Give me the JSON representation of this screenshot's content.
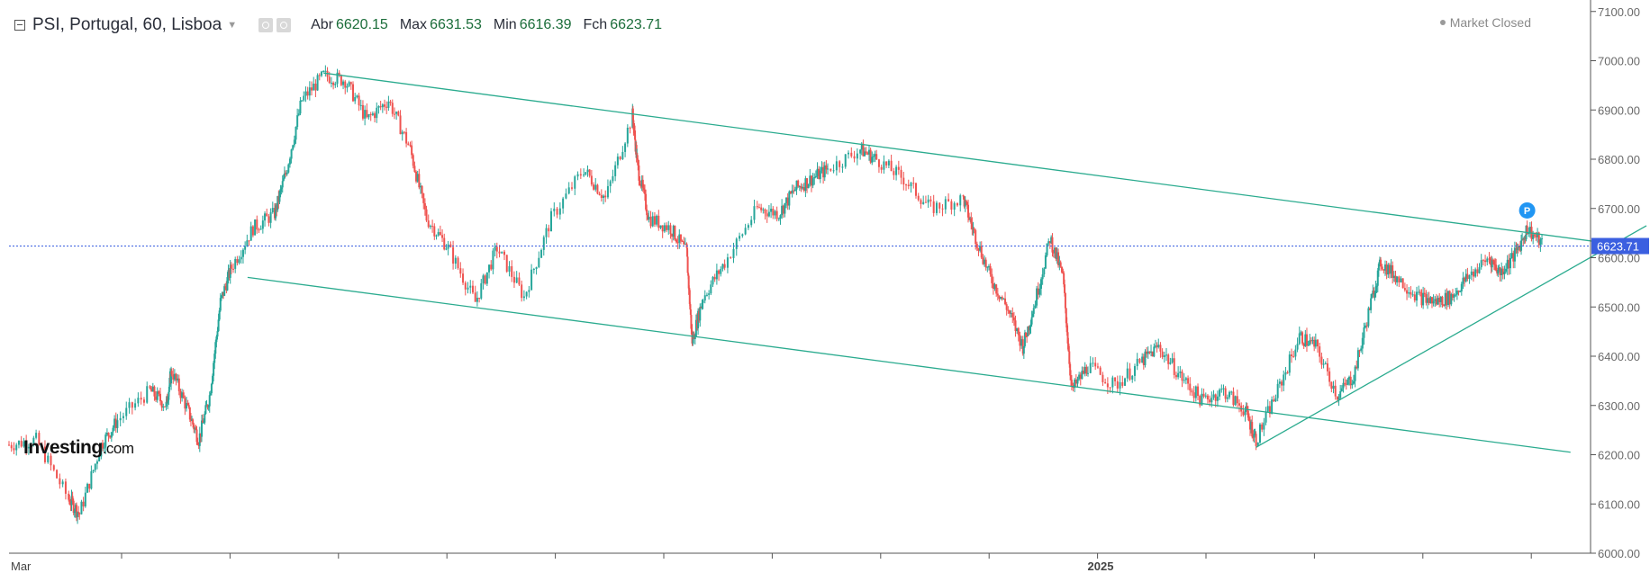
{
  "header": {
    "symbol": "PSI, Portugal, 60, Lisboa",
    "ohlc": [
      {
        "key": "Abr",
        "value": "6620.15"
      },
      {
        "key": "Max",
        "value": "6631.53"
      },
      {
        "key": "Min",
        "value": "6616.39"
      },
      {
        "key": "Fch",
        "value": "6623.71"
      }
    ],
    "status": "Market Closed"
  },
  "watermark": {
    "brand": "Investing",
    "domain": ".com"
  },
  "marker_label": "P",
  "colors": {
    "up": "#26a69a",
    "down": "#ef5350",
    "trendline": "#2bab8f",
    "current_line": "#3b5fe0",
    "price_tag": "#3b5fe0",
    "marker": "#2196f3"
  },
  "chart_data": {
    "type": "candlestick",
    "interval": "60",
    "ylim": [
      6000,
      7100
    ],
    "yticks": [
      6000,
      6100,
      6200,
      6300,
      6400,
      6500,
      6600,
      6700,
      6800,
      6900,
      7000,
      7100
    ],
    "ytick_labels": [
      "6000.00",
      "6100.00",
      "6200.00",
      "6300.00",
      "6400.00",
      "6500.00",
      "6600.00",
      "6700.00",
      "6800.00",
      "6900.00",
      "7000.00",
      "7100.00"
    ],
    "x_range": [
      0,
      15
    ],
    "x_labels": [
      {
        "x": 0,
        "text": "Mar"
      },
      {
        "x": 10,
        "text": "2025"
      }
    ],
    "current_price": 6623.71,
    "current_price_label": "6623.71",
    "price_path": [
      [
        0,
        6220
      ],
      [
        0.25,
        6230
      ],
      [
        0.55,
        6110
      ],
      [
        0.65,
        6080
      ],
      [
        0.85,
        6220
      ],
      [
        1.0,
        6270
      ],
      [
        1.3,
        6330
      ],
      [
        1.45,
        6300
      ],
      [
        1.5,
        6370
      ],
      [
        1.65,
        6290
      ],
      [
        1.75,
        6230
      ],
      [
        1.85,
        6320
      ],
      [
        1.95,
        6510
      ],
      [
        2.05,
        6580
      ],
      [
        2.25,
        6660
      ],
      [
        2.45,
        6690
      ],
      [
        2.55,
        6770
      ],
      [
        2.7,
        6920
      ],
      [
        2.9,
        6970
      ],
      [
        3.1,
        6960
      ],
      [
        3.3,
        6880
      ],
      [
        3.5,
        6920
      ],
      [
        3.7,
        6820
      ],
      [
        3.85,
        6680
      ],
      [
        4.05,
        6620
      ],
      [
        4.3,
        6510
      ],
      [
        4.5,
        6620
      ],
      [
        4.75,
        6520
      ],
      [
        5.0,
        6680
      ],
      [
        5.3,
        6780
      ],
      [
        5.5,
        6720
      ],
      [
        5.75,
        6890
      ],
      [
        5.8,
        6780
      ],
      [
        5.9,
        6680
      ],
      [
        6.1,
        6660
      ],
      [
        6.25,
        6610
      ],
      [
        6.3,
        6430
      ],
      [
        6.4,
        6520
      ],
      [
        6.6,
        6590
      ],
      [
        6.9,
        6700
      ],
      [
        7.1,
        6690
      ],
      [
        7.25,
        6740
      ],
      [
        7.4,
        6760
      ],
      [
        7.55,
        6780
      ],
      [
        7.85,
        6820
      ],
      [
        8.0,
        6800
      ],
      [
        8.25,
        6760
      ],
      [
        8.5,
        6700
      ],
      [
        8.8,
        6720
      ],
      [
        8.9,
        6650
      ],
      [
        9.05,
        6560
      ],
      [
        9.2,
        6500
      ],
      [
        9.35,
        6420
      ],
      [
        9.45,
        6500
      ],
      [
        9.6,
        6640
      ],
      [
        9.72,
        6560
      ],
      [
        9.8,
        6330
      ],
      [
        9.95,
        6380
      ],
      [
        10.2,
        6340
      ],
      [
        10.45,
        6390
      ],
      [
        10.6,
        6420
      ],
      [
        10.8,
        6360
      ],
      [
        11.0,
        6310
      ],
      [
        11.2,
        6330
      ],
      [
        11.4,
        6290
      ],
      [
        11.5,
        6230
      ],
      [
        11.7,
        6330
      ],
      [
        11.9,
        6440
      ],
      [
        12.05,
        6420
      ],
      [
        12.25,
        6320
      ],
      [
        12.4,
        6360
      ],
      [
        12.55,
        6500
      ],
      [
        12.65,
        6590
      ],
      [
        12.8,
        6560
      ],
      [
        13.0,
        6520
      ],
      [
        13.15,
        6510
      ],
      [
        13.3,
        6520
      ],
      [
        13.45,
        6560
      ],
      [
        13.65,
        6600
      ],
      [
        13.75,
        6570
      ],
      [
        13.9,
        6610
      ],
      [
        14.0,
        6660
      ],
      [
        14.15,
        6623.71
      ]
    ],
    "trendlines": [
      {
        "name": "upper-channel-line",
        "from": [
          2.9,
          6975
        ],
        "to": [
          15.0,
          6622
        ]
      },
      {
        "name": "lower-channel-line",
        "from": [
          2.2,
          6560
        ],
        "to": [
          14.4,
          6205
        ]
      },
      {
        "name": "rising-support-line",
        "from": [
          11.5,
          6215
        ],
        "to": [
          15.1,
          6665
        ]
      }
    ],
    "marker": {
      "x": 14.0,
      "y": 6685
    }
  }
}
